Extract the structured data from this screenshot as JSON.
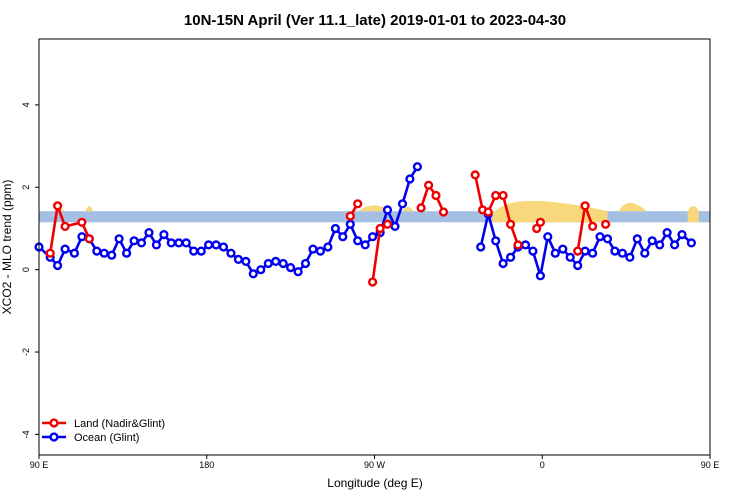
{
  "chart_data": {
    "type": "line",
    "title": "10N-15N April (Ver 11.1_late)   2019-01-01 to 2023-04-30",
    "xlabel": "Longitude (deg E)",
    "ylabel": "XCO2 - MLO trend (ppm)",
    "xlim": [
      90,
      450
    ],
    "ylim": [
      -4.5,
      5.6
    ],
    "x_ticks": [
      {
        "value": 90,
        "label": "90 E"
      },
      {
        "value": 180,
        "label": "180"
      },
      {
        "value": 270,
        "label": "90 W"
      },
      {
        "value": 360,
        "label": "0"
      },
      {
        "value": 450,
        "label": "90 E"
      },
      {
        "value": 540,
        "label": "180"
      }
    ],
    "y_ticks": [
      {
        "value": -4,
        "label": "-4"
      },
      {
        "value": -2,
        "label": "-2"
      },
      {
        "value": 0,
        "label": "0"
      },
      {
        "value": 2,
        "label": "2"
      },
      {
        "value": 4,
        "label": "4"
      }
    ],
    "legend_position": "bottom-left",
    "band": {
      "y_low": 1.15,
      "y_high": 1.42,
      "ocean_color": "#a4bfe3",
      "land_color": "#f8d87a"
    },
    "land_bumps": [
      {
        "x": [
          98.5,
          101,
          103.5
        ],
        "h": 0.22
      },
      {
        "x": [
          115,
          117,
          119
        ],
        "h": 0.25
      },
      {
        "x": [
          261,
          270,
          279
        ],
        "h": 0.28
      },
      {
        "x": [
          285,
          288,
          291
        ],
        "h": 0.2
      },
      {
        "x": [
          335,
          345,
          395
        ],
        "h": 0.5
      },
      {
        "x": [
          401,
          406,
          416
        ],
        "h": 0.4
      },
      {
        "x": [
          438,
          441,
          444
        ],
        "h": 0.25
      },
      {
        "x": [
          475,
          478,
          481
        ],
        "h": 0.22
      }
    ],
    "land_segments_lon": [
      [
        333,
        395
      ],
      [
        438,
        444
      ]
    ],
    "series": [
      {
        "name": "Ocean (Glint)",
        "color": "#0000ee",
        "segments": [
          [
            [
              90,
              0.55
            ],
            [
              96,
              0.3
            ],
            [
              100,
              0.1
            ],
            [
              104,
              0.5
            ],
            [
              109,
              0.4
            ],
            [
              113,
              0.8
            ],
            [
              117,
              0.75
            ],
            [
              121,
              0.45
            ],
            [
              125,
              0.4
            ],
            [
              129,
              0.35
            ],
            [
              133,
              0.75
            ],
            [
              137,
              0.4
            ],
            [
              141,
              0.7
            ],
            [
              145,
              0.65
            ],
            [
              149,
              0.9
            ],
            [
              153,
              0.6
            ],
            [
              157,
              0.85
            ],
            [
              161,
              0.65
            ],
            [
              165,
              0.65
            ],
            [
              169,
              0.65
            ],
            [
              173,
              0.45
            ],
            [
              177,
              0.45
            ],
            [
              181,
              0.6
            ],
            [
              185,
              0.6
            ],
            [
              189,
              0.55
            ],
            [
              193,
              0.4
            ],
            [
              197,
              0.25
            ],
            [
              201,
              0.2
            ],
            [
              205,
              -0.1
            ],
            [
              209,
              0.0
            ],
            [
              213,
              0.15
            ],
            [
              217,
              0.2
            ],
            [
              221,
              0.15
            ],
            [
              225,
              0.05
            ],
            [
              229,
              -0.05
            ],
            [
              233,
              0.15
            ],
            [
              237,
              0.5
            ],
            [
              241,
              0.45
            ],
            [
              245,
              0.55
            ],
            [
              249,
              1.0
            ],
            [
              253,
              0.8
            ],
            [
              257,
              1.1
            ],
            [
              261,
              0.7
            ],
            [
              265,
              0.6
            ],
            [
              269,
              0.8
            ],
            [
              273,
              0.9
            ],
            [
              277,
              1.45
            ],
            [
              281,
              1.05
            ],
            [
              285,
              1.6
            ],
            [
              289,
              2.2
            ],
            [
              293,
              2.5
            ]
          ],
          [
            [
              327,
              0.55
            ],
            [
              331,
              1.35
            ],
            [
              335,
              0.7
            ],
            [
              339,
              0.15
            ],
            [
              343,
              0.3
            ],
            [
              347,
              0.55
            ],
            [
              351,
              0.6
            ],
            [
              355,
              0.45
            ],
            [
              359,
              -0.15
            ],
            [
              363,
              0.8
            ],
            [
              367,
              0.4
            ],
            [
              371,
              0.5
            ],
            [
              375,
              0.3
            ],
            [
              379,
              0.1
            ],
            [
              383,
              0.45
            ],
            [
              387,
              0.4
            ],
            [
              391,
              0.8
            ],
            [
              395,
              0.75
            ],
            [
              399,
              0.45
            ],
            [
              403,
              0.4
            ],
            [
              407,
              0.3
            ],
            [
              411,
              0.75
            ],
            [
              415,
              0.4
            ],
            [
              419,
              0.7
            ],
            [
              423,
              0.6
            ],
            [
              427,
              0.9
            ],
            [
              431,
              0.6
            ],
            [
              435,
              0.85
            ],
            [
              440,
              0.65
            ]
          ]
        ]
      },
      {
        "name": "Land (Nadir&Glint)",
        "color": "#ee0000",
        "segments": [
          [
            [
              96,
              0.4
            ],
            [
              100,
              1.55
            ],
            [
              104,
              1.05
            ],
            [
              113,
              1.15
            ],
            [
              117,
              0.75
            ]
          ],
          [
            [
              269,
              -0.3
            ],
            [
              273,
              1.0
            ],
            [
              277,
              1.1
            ]
          ],
          [
            [
              257,
              1.3
            ],
            [
              261,
              1.6
            ]
          ],
          [
            [
              295,
              1.5
            ],
            [
              299,
              2.05
            ],
            [
              303,
              1.8
            ],
            [
              307,
              1.4
            ]
          ],
          [
            [
              324,
              2.3
            ],
            [
              328,
              1.45
            ],
            [
              331,
              1.4
            ],
            [
              335,
              1.8
            ],
            [
              339,
              1.8
            ],
            [
              343,
              1.1
            ],
            [
              347,
              0.6
            ]
          ],
          [
            [
              357,
              1.0
            ],
            [
              359,
              1.15
            ]
          ],
          [
            [
              379,
              0.45
            ],
            [
              383,
              1.55
            ],
            [
              387,
              1.05
            ]
          ],
          [
            [
              394,
              1.1
            ]
          ]
        ]
      }
    ]
  }
}
